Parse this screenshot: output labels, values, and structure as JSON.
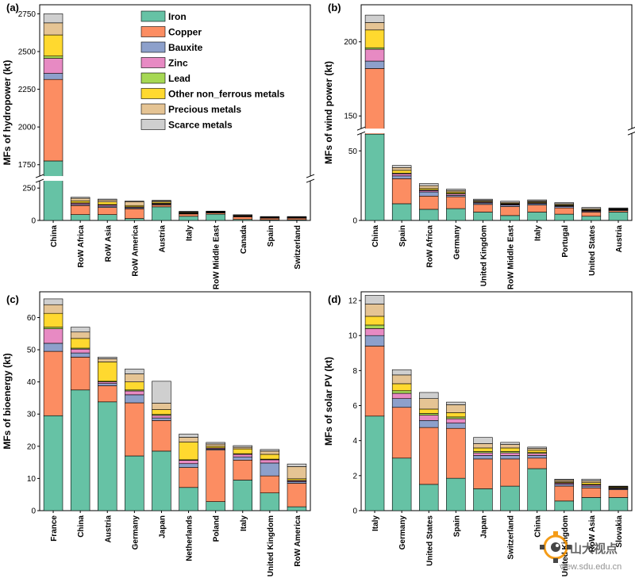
{
  "colors": {
    "Iron": "#66c2a5",
    "Copper": "#fc8d62",
    "Bauxite": "#8da0cb",
    "Zinc": "#e78ac3",
    "Lead": "#a6d854",
    "Other non_ferrous metals": "#ffd92f",
    "Precious metals": "#e5c494",
    "Scarce metals": "#cfcfcf"
  },
  "legend": [
    "Iron",
    "Copper",
    "Bauxite",
    "Zinc",
    "Lead",
    "Other non_ferrous metals",
    "Precious metals",
    "Scarce metals"
  ],
  "watermark": {
    "text": "山大视点",
    "url": "view.sdu.edu.cn"
  },
  "chart_data": [
    {
      "panel": "(a)",
      "type": "bar",
      "stacked": true,
      "ylabel": "MFs of hydropower (kt)",
      "axis_break": true,
      "yticks_lower": [
        0,
        250
      ],
      "yticks_upper": [
        1750,
        2000,
        2250,
        2500,
        2750
      ],
      "categories": [
        "China",
        "RoW Africa",
        "RoW Asia",
        "RoW America",
        "Austria",
        "Italy",
        "RoW Middle East",
        "Canada",
        "Spain",
        "Switzerland"
      ],
      "series": [
        {
          "name": "Iron",
          "values": [
            1775,
            45,
            45,
            15,
            105,
            32,
            48,
            8,
            5,
            5
          ]
        },
        {
          "name": "Copper",
          "values": [
            540,
            70,
            55,
            75,
            15,
            18,
            10,
            20,
            12,
            12
          ]
        },
        {
          "name": "Bauxite",
          "values": [
            40,
            8,
            10,
            8,
            5,
            3,
            2,
            2,
            2,
            2
          ]
        },
        {
          "name": "Zinc",
          "values": [
            100,
            10,
            10,
            5,
            5,
            3,
            2,
            2,
            2,
            2
          ]
        },
        {
          "name": "Lead",
          "values": [
            15,
            3,
            3,
            2,
            2,
            1,
            1,
            1,
            1,
            1
          ]
        },
        {
          "name": "Other non_ferrous metals",
          "values": [
            140,
            15,
            20,
            10,
            10,
            5,
            3,
            3,
            3,
            3
          ]
        },
        {
          "name": "Precious metals",
          "values": [
            80,
            20,
            15,
            30,
            8,
            5,
            3,
            5,
            3,
            3
          ]
        },
        {
          "name": "Scarce metals",
          "values": [
            60,
            8,
            7,
            5,
            5,
            3,
            3,
            3,
            2,
            2
          ]
        }
      ]
    },
    {
      "panel": "(b)",
      "type": "bar",
      "stacked": true,
      "ylabel": "MFs of wind power (kt)",
      "axis_break": true,
      "yticks_lower": [
        0,
        50
      ],
      "yticks_upper": [
        150,
        200
      ],
      "categories": [
        "China",
        "Spain",
        "RoW Africa",
        "Germany",
        "United Kingdom",
        "RoW Middle East",
        "Italy",
        "Portugal",
        "United States",
        "Austria"
      ],
      "series": [
        {
          "name": "Iron",
          "values": [
            102,
            12,
            8,
            8.5,
            6,
            3.5,
            6,
            4.5,
            3,
            6
          ]
        },
        {
          "name": "Copper",
          "values": [
            80,
            18,
            9.5,
            8.5,
            5.5,
            6.5,
            5,
            4.5,
            3,
            1
          ]
        },
        {
          "name": "Bauxite",
          "values": [
            5,
            2,
            3,
            1,
            1,
            1,
            1,
            1,
            0.5,
            0.5
          ]
        },
        {
          "name": "Zinc",
          "values": [
            8,
            1.5,
            1,
            1,
            0.5,
            0.5,
            0.5,
            0.5,
            0.5,
            0.3
          ]
        },
        {
          "name": "Lead",
          "values": [
            1,
            0.5,
            0.5,
            0.5,
            0.3,
            0.3,
            0.3,
            0.3,
            0.3,
            0.2
          ]
        },
        {
          "name": "Other non_ferrous metals",
          "values": [
            12,
            2,
            1,
            1,
            0.5,
            0.5,
            0.5,
            0.5,
            0.5,
            0.2
          ]
        },
        {
          "name": "Precious metals",
          "values": [
            5,
            2,
            2,
            1,
            0.7,
            0.7,
            0.7,
            0.7,
            0.7,
            0.3
          ]
        },
        {
          "name": "Scarce metals",
          "values": [
            5,
            1.5,
            1.5,
            1,
            0.8,
            0.8,
            0.8,
            0.8,
            0.8,
            0.5
          ]
        }
      ]
    },
    {
      "panel": "(c)",
      "type": "bar",
      "stacked": true,
      "ylabel": "MFs of bioenergy (kt)",
      "ylim": [
        0,
        68
      ],
      "yticks": [
        0,
        10,
        20,
        30,
        40,
        50,
        60
      ],
      "categories": [
        "France",
        "China",
        "Austria",
        "Germany",
        "Japan",
        "Netherlands",
        "Poland",
        "Italy",
        "United Kingdom",
        "RoW America"
      ],
      "series": [
        {
          "name": "Iron",
          "values": [
            29.5,
            37.5,
            33.8,
            17,
            18.5,
            7.2,
            2.8,
            9.5,
            5.5,
            1.2
          ]
        },
        {
          "name": "Copper",
          "values": [
            20,
            10.2,
            5,
            16.5,
            9.5,
            6.2,
            16,
            6.2,
            5.3,
            7.3
          ]
        },
        {
          "name": "Bauxite",
          "values": [
            2.5,
            1.3,
            0.7,
            2.5,
            0.8,
            1.2,
            0.3,
            1,
            4,
            0.5
          ]
        },
        {
          "name": "Zinc",
          "values": [
            4.5,
            1.2,
            0.5,
            1.2,
            0.8,
            1,
            0.3,
            0.8,
            1,
            0.3
          ]
        },
        {
          "name": "Lead",
          "values": [
            0.5,
            0.3,
            0.2,
            0.3,
            0.3,
            0.2,
            0.1,
            0.2,
            0.2,
            0.1
          ]
        },
        {
          "name": "Other non_ferrous metals",
          "values": [
            4.3,
            3,
            6,
            2.5,
            1.5,
            5.5,
            0.5,
            1.5,
            1.5,
            0.5
          ]
        },
        {
          "name": "Precious metals",
          "values": [
            2.7,
            2,
            1,
            2.5,
            2,
            1.5,
            0.7,
            0.5,
            1,
            3.8
          ]
        },
        {
          "name": "Scarce metals",
          "values": [
            1.8,
            1.5,
            0.5,
            1.5,
            6.8,
            1,
            0.5,
            0.5,
            0.5,
            0.8
          ]
        }
      ]
    },
    {
      "panel": "(d)",
      "type": "bar",
      "stacked": true,
      "ylabel": "MFs of solar PV (kt)",
      "ylim": [
        0,
        12.5
      ],
      "yticks": [
        0,
        2,
        4,
        6,
        8,
        10,
        12
      ],
      "categories": [
        "Italy",
        "Germany",
        "United States",
        "Spain",
        "Japan",
        "Switzerland",
        "China",
        "United Kingdom",
        "RoW Asia",
        "Slovakia"
      ],
      "series": [
        {
          "name": "Iron",
          "values": [
            5.4,
            3,
            1.5,
            1.85,
            1.25,
            1.4,
            2.4,
            0.55,
            0.75,
            0.75
          ]
        },
        {
          "name": "Copper",
          "values": [
            4,
            2.9,
            3.25,
            2.85,
            1.7,
            1.55,
            0.6,
            0.85,
            0.55,
            0.45
          ]
        },
        {
          "name": "Bauxite",
          "values": [
            0.6,
            0.5,
            0.4,
            0.3,
            0.2,
            0.2,
            0.15,
            0.1,
            0.1,
            0.05
          ]
        },
        {
          "name": "Zinc",
          "values": [
            0.4,
            0.3,
            0.3,
            0.25,
            0.15,
            0.15,
            0.12,
            0.07,
            0.07,
            0.04
          ]
        },
        {
          "name": "Lead",
          "values": [
            0.2,
            0.15,
            0.1,
            0.1,
            0.08,
            0.08,
            0.05,
            0.03,
            0.03,
            0.02
          ]
        },
        {
          "name": "Other non_ferrous metals",
          "values": [
            0.5,
            0.4,
            0.25,
            0.25,
            0.2,
            0.2,
            0.13,
            0.05,
            0.1,
            0.04
          ]
        },
        {
          "name": "Precious metals",
          "values": [
            0.7,
            0.5,
            0.6,
            0.45,
            0.25,
            0.2,
            0.1,
            0.1,
            0.1,
            0.03
          ]
        },
        {
          "name": "Scarce metals",
          "values": [
            0.5,
            0.3,
            0.35,
            0.15,
            0.35,
            0.12,
            0.08,
            0.05,
            0.1,
            0.02
          ]
        }
      ]
    }
  ]
}
